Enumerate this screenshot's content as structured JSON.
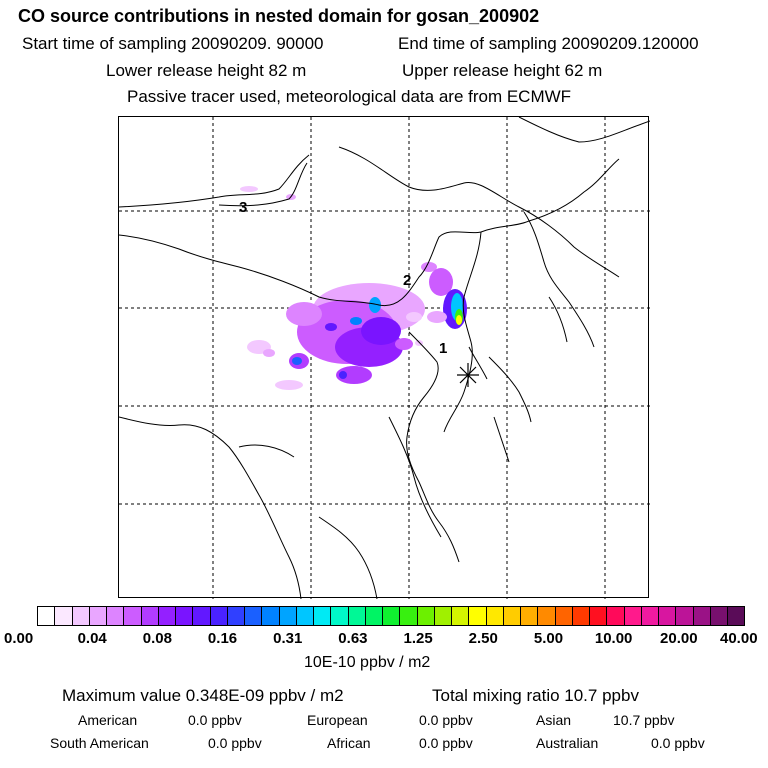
{
  "header": {
    "title": "CO  source contributions in nested domain for gosan_200902",
    "start": "Start time of sampling 20090209. 90000",
    "end": "End time of sampling 20090209.120000",
    "lower": "Lower release height   82 m",
    "upper": "Upper release height   62 m",
    "tracer": "Passive tracer used, meteorological data are from ECMWF"
  },
  "map": {
    "region_labels": [
      "1",
      "2",
      "3"
    ],
    "receptor_marker": "asterisk-icon",
    "colors": {
      "coast": "#000000",
      "grid": "#000000"
    }
  },
  "colorbar": {
    "labels": [
      "0.00",
      "0.04",
      "0.08",
      "0.16",
      "0.31",
      "0.63",
      "1.25",
      "2.50",
      "5.00",
      "10.00",
      "20.00",
      "40.00"
    ],
    "colors": [
      "#ffffff",
      "#fbe8ff",
      "#f3c8ff",
      "#e9a6ff",
      "#dd84ff",
      "#cc5cff",
      "#b23cff",
      "#9420ff",
      "#7a14ff",
      "#6218ff",
      "#4a22ff",
      "#3040ff",
      "#1a60ff",
      "#0082ff",
      "#00a4ff",
      "#00c6ff",
      "#00eaf4",
      "#00f8c8",
      "#00f896",
      "#00f464",
      "#10f030",
      "#38f010",
      "#6cf000",
      "#a0f000",
      "#d4f400",
      "#ffff00",
      "#ffe800",
      "#ffcc00",
      "#ffae00",
      "#ff8a00",
      "#ff6400",
      "#ff3a00",
      "#ff1020",
      "#ff0a5a",
      "#ff1a8c",
      "#f01aa0",
      "#d816a0",
      "#bc1498",
      "#9a1286",
      "#78106e",
      "#5a0c58"
    ],
    "units": "10E-10 ppbv / m2"
  },
  "summary": {
    "max_value": "Maximum value  0.348E-09 ppbv / m2",
    "total": "Total mixing ratio       10.7 ppbv",
    "regions": [
      {
        "name": "American",
        "value": "0.0 ppbv"
      },
      {
        "name": "European",
        "value": "0.0 ppbv"
      },
      {
        "name": "Asian",
        "value": "10.7 ppbv"
      },
      {
        "name": "South American",
        "value": "0.0 ppbv"
      },
      {
        "name": "African",
        "value": "0.0 ppbv"
      },
      {
        "name": "Australian",
        "value": "0.0 ppbv"
      }
    ]
  }
}
